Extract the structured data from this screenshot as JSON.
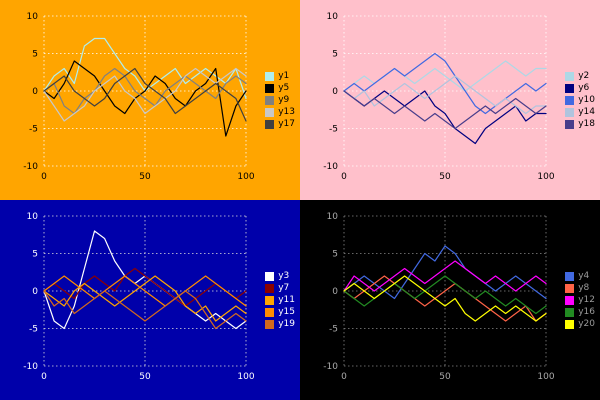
{
  "chart_data": [
    {
      "type": "line",
      "title": "",
      "xlabel": "",
      "ylabel": "",
      "xlim": [
        0,
        100
      ],
      "ylim": [
        -10,
        10
      ],
      "xticks": [
        0,
        50,
        100
      ],
      "yticks": [
        -10,
        -5,
        0,
        5,
        10
      ],
      "grid": true,
      "legend_position": "right",
      "background": "#FFA500",
      "grid_color": "#FFFFFF",
      "tick_color": "#000000",
      "legend_text_color": "#000000",
      "x": [
        0,
        5,
        10,
        15,
        20,
        25,
        30,
        35,
        40,
        45,
        50,
        55,
        60,
        65,
        70,
        75,
        80,
        85,
        90,
        95,
        100
      ],
      "series": [
        {
          "name": "y1",
          "color": "#AFEEEE",
          "values": [
            0,
            2,
            3,
            1,
            6,
            7,
            7,
            5,
            3,
            2,
            0,
            1,
            2,
            3,
            1,
            2,
            3,
            2,
            1,
            3,
            -1
          ]
        },
        {
          "name": "y5",
          "color": "#000000",
          "values": [
            0,
            -1,
            1,
            4,
            3,
            2,
            0,
            -2,
            -3,
            -1,
            0,
            2,
            1,
            -1,
            -2,
            0,
            1,
            3,
            -6,
            -2,
            0
          ]
        },
        {
          "name": "y9",
          "color": "#808080",
          "values": [
            0,
            1,
            -2,
            -3,
            -1,
            0,
            2,
            3,
            2,
            0,
            -1,
            -2,
            0,
            1,
            2,
            1,
            0,
            -1,
            1,
            2,
            1
          ]
        },
        {
          "name": "y13",
          "color": "#C8C8C8",
          "values": [
            0,
            -2,
            -4,
            -3,
            -2,
            0,
            1,
            2,
            0,
            -1,
            -3,
            -2,
            -1,
            0,
            2,
            3,
            2,
            1,
            2,
            3,
            2
          ]
        },
        {
          "name": "y17",
          "color": "#404040",
          "values": [
            0,
            1,
            2,
            0,
            -1,
            -2,
            -1,
            1,
            2,
            3,
            1,
            0,
            -1,
            -3,
            -2,
            -1,
            0,
            1,
            0,
            -1,
            -4
          ]
        }
      ]
    },
    {
      "type": "line",
      "title": "",
      "xlabel": "",
      "ylabel": "",
      "xlim": [
        0,
        100
      ],
      "ylim": [
        -10,
        10
      ],
      "xticks": [
        0,
        50,
        100
      ],
      "yticks": [
        -10,
        -5,
        0,
        5,
        10
      ],
      "grid": true,
      "legend_position": "right",
      "background": "#FFC0CB",
      "grid_color": "#FFFFFF",
      "tick_color": "#000000",
      "legend_text_color": "#000000",
      "x": [
        0,
        5,
        10,
        15,
        20,
        25,
        30,
        35,
        40,
        45,
        50,
        55,
        60,
        65,
        70,
        75,
        80,
        85,
        90,
        95,
        100
      ],
      "series": [
        {
          "name": "y2",
          "color": "#ADD8E6",
          "values": [
            0,
            1,
            2,
            1,
            2,
            3,
            2,
            1,
            2,
            3,
            2,
            1,
            0,
            1,
            2,
            3,
            4,
            3,
            2,
            3,
            3
          ]
        },
        {
          "name": "y6",
          "color": "#000080",
          "values": [
            0,
            -1,
            -2,
            -1,
            0,
            -1,
            -2,
            -1,
            0,
            -2,
            -3,
            -5,
            -6,
            -7,
            -5,
            -4,
            -3,
            -2,
            -4,
            -3,
            -3
          ]
        },
        {
          "name": "y10",
          "color": "#4169E1",
          "values": [
            0,
            1,
            0,
            1,
            2,
            3,
            2,
            3,
            4,
            5,
            4,
            2,
            0,
            -2,
            -3,
            -2,
            -1,
            0,
            1,
            0,
            1
          ]
        },
        {
          "name": "y14",
          "color": "#B0C4DE",
          "values": [
            0,
            -1,
            0,
            -2,
            -1,
            0,
            1,
            0,
            -1,
            0,
            1,
            2,
            1,
            0,
            -1,
            -2,
            -1,
            -2,
            -3,
            -2,
            -2
          ]
        },
        {
          "name": "y18",
          "color": "#483D8B",
          "values": [
            0,
            -1,
            -2,
            -1,
            -2,
            -3,
            -2,
            -3,
            -4,
            -3,
            -4,
            -5,
            -4,
            -3,
            -2,
            -3,
            -2,
            -1,
            -2,
            -3,
            -2
          ]
        }
      ]
    },
    {
      "type": "line",
      "title": "",
      "xlabel": "",
      "ylabel": "",
      "xlim": [
        0,
        100
      ],
      "ylim": [
        -10,
        10
      ],
      "xticks": [
        0,
        50,
        100
      ],
      "yticks": [
        -10,
        -5,
        0,
        5,
        10
      ],
      "grid": true,
      "legend_position": "right",
      "background": "#0000AA",
      "grid_color": "#DDDDDD",
      "tick_color": "#FFFFFF",
      "legend_text_color": "#FFFFFF",
      "x": [
        0,
        5,
        10,
        15,
        20,
        25,
        30,
        35,
        40,
        45,
        50,
        55,
        60,
        65,
        70,
        75,
        80,
        85,
        90,
        95,
        100
      ],
      "series": [
        {
          "name": "y3",
          "color": "#FFFFFF",
          "values": [
            0,
            -4,
            -5,
            -2,
            3,
            8,
            7,
            4,
            2,
            1,
            2,
            1,
            0,
            -1,
            -2,
            -3,
            -4,
            -3,
            -4,
            -5,
            -4
          ]
        },
        {
          "name": "y7",
          "color": "#8B0000",
          "values": [
            0,
            1,
            0,
            -1,
            1,
            2,
            1,
            0,
            2,
            3,
            2,
            1,
            0,
            -1,
            -2,
            -1,
            0,
            1,
            0,
            -1,
            0
          ]
        },
        {
          "name": "y11",
          "color": "#FFA500",
          "values": [
            0,
            -1,
            -2,
            0,
            1,
            0,
            -1,
            -2,
            -1,
            0,
            1,
            2,
            1,
            0,
            -2,
            -3,
            -2,
            -4,
            -3,
            -2,
            -3
          ]
        },
        {
          "name": "y15",
          "color": "#FF8C00",
          "values": [
            0,
            1,
            2,
            1,
            0,
            -1,
            0,
            1,
            2,
            1,
            0,
            -1,
            -2,
            -1,
            0,
            1,
            2,
            1,
            0,
            -1,
            -2
          ]
        },
        {
          "name": "y19",
          "color": "#D2691E",
          "values": [
            0,
            -2,
            -1,
            -3,
            -2,
            -1,
            0,
            -1,
            -2,
            -3,
            -4,
            -3,
            -2,
            -1,
            0,
            -1,
            -3,
            -5,
            -4,
            -3,
            -4
          ]
        }
      ]
    },
    {
      "type": "line",
      "title": "",
      "xlabel": "",
      "ylabel": "",
      "xlim": [
        0,
        100
      ],
      "ylim": [
        -10,
        10
      ],
      "xticks": [
        0,
        50,
        100
      ],
      "yticks": [
        -10,
        -5,
        0,
        5,
        10
      ],
      "grid": true,
      "legend_position": "right",
      "background": "#000000",
      "grid_color": "#888888",
      "tick_color": "#AAAAAA",
      "legend_text_color": "#999999",
      "x": [
        0,
        5,
        10,
        15,
        20,
        25,
        30,
        35,
        40,
        45,
        50,
        55,
        60,
        65,
        70,
        75,
        80,
        85,
        90,
        95,
        100
      ],
      "series": [
        {
          "name": "y4",
          "color": "#4169E1",
          "values": [
            0,
            1,
            2,
            1,
            0,
            -1,
            1,
            3,
            5,
            4,
            6,
            5,
            3,
            2,
            1,
            0,
            1,
            2,
            1,
            0,
            -1
          ]
        },
        {
          "name": "y8",
          "color": "#FF6347",
          "values": [
            0,
            -1,
            0,
            1,
            2,
            1,
            0,
            -1,
            -2,
            -1,
            0,
            1,
            0,
            -1,
            -2,
            -3,
            -4,
            -3,
            -2,
            -4,
            -3
          ]
        },
        {
          "name": "y12",
          "color": "#FF00FF",
          "values": [
            0,
            2,
            1,
            0,
            1,
            2,
            3,
            2,
            1,
            2,
            3,
            4,
            3,
            2,
            1,
            2,
            1,
            0,
            1,
            2,
            1
          ]
        },
        {
          "name": "y16",
          "color": "#228B22",
          "values": [
            0,
            -1,
            -2,
            -1,
            0,
            1,
            0,
            -1,
            0,
            1,
            2,
            1,
            0,
            -1,
            0,
            -1,
            -2,
            -1,
            -2,
            -3,
            -2
          ]
        },
        {
          "name": "y20",
          "color": "#FFFF00",
          "values": [
            0,
            1,
            0,
            -1,
            0,
            1,
            2,
            1,
            0,
            -1,
            -2,
            -1,
            -3,
            -4,
            -3,
            -2,
            -3,
            -2,
            -3,
            -4,
            -3
          ]
        }
      ]
    }
  ]
}
